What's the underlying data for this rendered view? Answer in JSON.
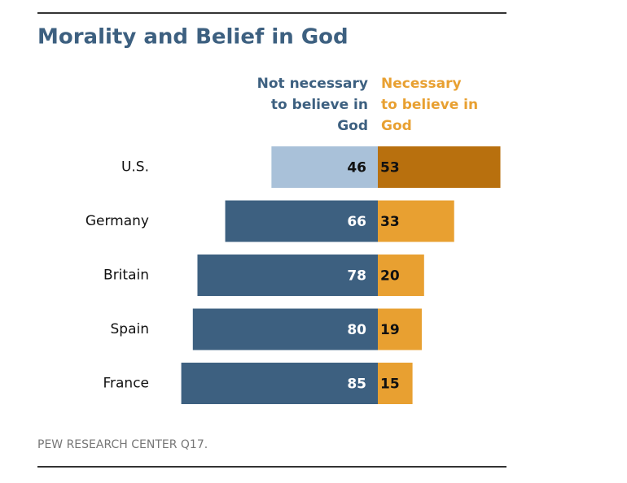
{
  "chart_data": {
    "type": "diverging_bar",
    "title": "Morality and Belief in God",
    "categories": [
      "U.S.",
      "Germany",
      "Britain",
      "Spain",
      "France"
    ],
    "series": [
      {
        "name": "Not necessary to believe in God",
        "color": "#3d6080",
        "colors": [
          "#a9c1d9",
          "#3d6080",
          "#3d6080",
          "#3d6080",
          "#3d6080"
        ],
        "label_colors": [
          "#111111",
          "#ffffff",
          "#ffffff",
          "#ffffff",
          "#ffffff"
        ],
        "values": [
          46,
          66,
          78,
          80,
          85
        ]
      },
      {
        "name": "Necessary to believe in God",
        "color": "#e8a031",
        "colors": [
          "#b8700e",
          "#e8a031",
          "#e8a031",
          "#e8a031",
          "#e8a031"
        ],
        "label_colors": [
          "#111111",
          "#111111",
          "#111111",
          "#111111",
          "#111111"
        ],
        "values": [
          53,
          33,
          20,
          19,
          15
        ]
      }
    ],
    "source": "PEW RESEARCH CENTER Q17."
  }
}
